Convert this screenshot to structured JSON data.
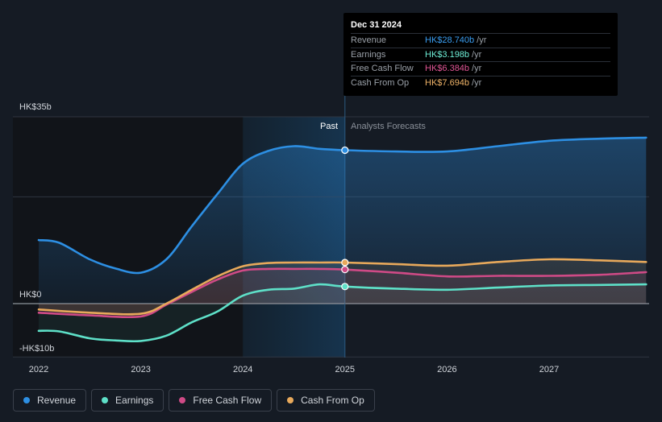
{
  "chart_data": {
    "type": "line",
    "y_axis": {
      "unit": "HK$b",
      "ylim": [
        -10,
        35
      ],
      "tick_labels": [
        "HK$35b",
        "HK$0",
        "-HK$10b"
      ]
    },
    "x_axis": {
      "xlim": [
        2021.8,
        2027.95
      ],
      "tick_labels": [
        "2022",
        "2023",
        "2024",
        "2025",
        "2026",
        "2027"
      ],
      "ticks": [
        2022,
        2023,
        2024,
        2025,
        2026,
        2027
      ]
    },
    "divider_year": 2025,
    "shade_start_year": 2024,
    "past_label": "Past",
    "forecast_label": "Analysts Forecasts",
    "series": [
      {
        "name": "Revenue",
        "color": "#2d8fe3",
        "points": [
          [
            2022,
            11.9
          ],
          [
            2022.2,
            11.4
          ],
          [
            2022.5,
            8.3
          ],
          [
            2022.75,
            6.6
          ],
          [
            2023,
            5.8
          ],
          [
            2023.25,
            8.3
          ],
          [
            2023.5,
            14.5
          ],
          [
            2023.75,
            20.5
          ],
          [
            2024,
            26.2
          ],
          [
            2024.25,
            28.6
          ],
          [
            2024.5,
            29.5
          ],
          [
            2024.75,
            29.0
          ],
          [
            2025,
            28.74
          ],
          [
            2025.5,
            28.5
          ],
          [
            2026,
            28.5
          ],
          [
            2026.5,
            29.5
          ],
          [
            2027,
            30.5
          ],
          [
            2027.5,
            30.9
          ],
          [
            2027.95,
            31.1
          ]
        ]
      },
      {
        "name": "Earnings",
        "color": "#5ee0c8",
        "points": [
          [
            2022,
            -5.1
          ],
          [
            2022.2,
            -5.2
          ],
          [
            2022.5,
            -6.5
          ],
          [
            2022.75,
            -6.9
          ],
          [
            2023,
            -7.0
          ],
          [
            2023.25,
            -6.0
          ],
          [
            2023.5,
            -3.5
          ],
          [
            2023.75,
            -1.5
          ],
          [
            2024,
            1.5
          ],
          [
            2024.25,
            2.6
          ],
          [
            2024.5,
            2.8
          ],
          [
            2024.75,
            3.6
          ],
          [
            2025,
            3.198
          ],
          [
            2025.5,
            2.8
          ],
          [
            2026,
            2.6
          ],
          [
            2026.5,
            3.0
          ],
          [
            2027,
            3.4
          ],
          [
            2027.5,
            3.5
          ],
          [
            2027.95,
            3.6
          ]
        ]
      },
      {
        "name": "Free Cash Flow",
        "color": "#cf4a86",
        "points": [
          [
            2022,
            -1.7
          ],
          [
            2022.5,
            -2.2
          ],
          [
            2023,
            -2.4
          ],
          [
            2023.25,
            -0.2
          ],
          [
            2023.5,
            2.2
          ],
          [
            2023.75,
            4.5
          ],
          [
            2024,
            6.2
          ],
          [
            2024.25,
            6.5
          ],
          [
            2024.5,
            6.5
          ],
          [
            2024.75,
            6.5
          ],
          [
            2025,
            6.384
          ],
          [
            2025.5,
            5.8
          ],
          [
            2026,
            5.1
          ],
          [
            2026.5,
            5.2
          ],
          [
            2027,
            5.2
          ],
          [
            2027.5,
            5.4
          ],
          [
            2027.95,
            5.9
          ]
        ]
      },
      {
        "name": "Cash From Op",
        "color": "#e8a95b",
        "points": [
          [
            2022,
            -1.1
          ],
          [
            2022.5,
            -1.7
          ],
          [
            2023,
            -1.9
          ],
          [
            2023.25,
            0.0
          ],
          [
            2023.5,
            2.6
          ],
          [
            2023.75,
            5.1
          ],
          [
            2024,
            7.0
          ],
          [
            2024.25,
            7.6
          ],
          [
            2024.5,
            7.7
          ],
          [
            2024.75,
            7.7
          ],
          [
            2025,
            7.694
          ],
          [
            2025.5,
            7.4
          ],
          [
            2026,
            7.1
          ],
          [
            2026.5,
            7.8
          ],
          [
            2027,
            8.3
          ],
          [
            2027.5,
            8.1
          ],
          [
            2027.95,
            7.8
          ]
        ]
      }
    ]
  },
  "tooltip": {
    "date": "Dec 31 2024",
    "unit": "/yr",
    "rows": [
      {
        "label": "Revenue",
        "value": "HK$28.740b",
        "color": "#3a9df0"
      },
      {
        "label": "Earnings",
        "value": "HK$3.198b",
        "color": "#6ff0d8"
      },
      {
        "label": "Free Cash Flow",
        "value": "HK$6.384b",
        "color": "#e05595"
      },
      {
        "label": "Cash From Op",
        "value": "HK$7.694b",
        "color": "#f0b468"
      }
    ]
  },
  "legend": [
    {
      "label": "Revenue",
      "color": "#2d8fe3"
    },
    {
      "label": "Earnings",
      "color": "#5ee0c8"
    },
    {
      "label": "Free Cash Flow",
      "color": "#cf4a86"
    },
    {
      "label": "Cash From Op",
      "color": "#e8a95b"
    }
  ]
}
